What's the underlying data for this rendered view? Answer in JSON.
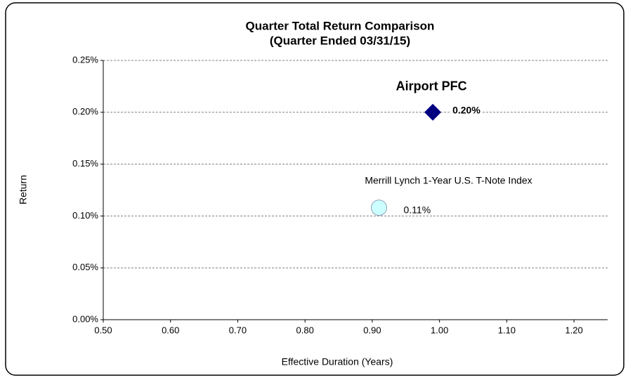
{
  "chart_data": {
    "type": "scatter",
    "title": "Quarter Total Return Comparison",
    "subtitle": "(Quarter Ended 03/31/15)",
    "x_label": "Effective Duration (Years)",
    "y_label": "Return",
    "grid": true,
    "xlim": [
      0.5,
      1.25
    ],
    "ylim": [
      0,
      0.25
    ],
    "xticks": [
      {
        "value": 0.5,
        "label": "0.50"
      },
      {
        "value": 0.6,
        "label": "0.60"
      },
      {
        "value": 0.7,
        "label": "0.70"
      },
      {
        "value": 0.8,
        "label": "0.80"
      },
      {
        "value": 0.9,
        "label": "0.90"
      },
      {
        "value": 1.0,
        "label": "1.00"
      },
      {
        "value": 1.1,
        "label": "1.10"
      },
      {
        "value": 1.2,
        "label": "1.20"
      }
    ],
    "yticks": [
      {
        "value": 0,
        "label": "0.00%"
      },
      {
        "value": 0.05,
        "label": "0.05%"
      },
      {
        "value": 0.1,
        "label": "0.10%"
      },
      {
        "value": 0.15,
        "label": "0.15%"
      },
      {
        "value": 0.2,
        "label": "0.20%"
      },
      {
        "value": 0.25,
        "label": "0.25%"
      }
    ],
    "series": [
      {
        "name": "Airport PFC",
        "color": "#000080",
        "marker": "diamond",
        "x": [
          0.99
        ],
        "values": [
          0.2
        ],
        "value_labels": [
          "0.20%"
        ]
      },
      {
        "name": "Merrill Lynch 1-Year U.S. T-Note Index",
        "color": "#ccffff",
        "marker": "circle",
        "x": [
          0.91
        ],
        "values": [
          0.108
        ],
        "value_labels": [
          "0.11%"
        ]
      }
    ]
  }
}
